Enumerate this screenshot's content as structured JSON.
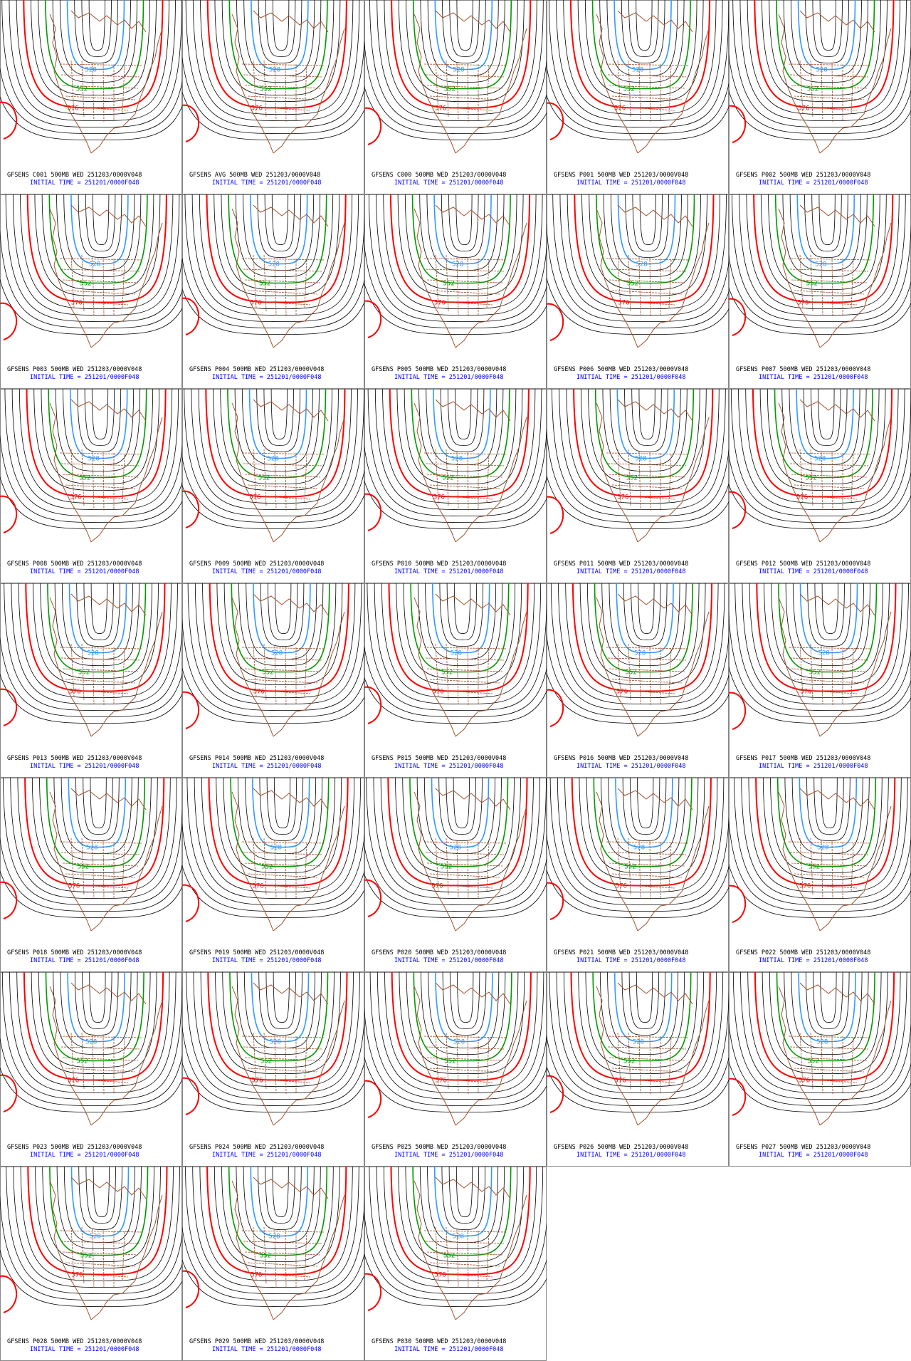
{
  "panels": [
    {
      "title": "GFSENS C001 500MB WED 251203/0000V048",
      "init": "INITIAL TIME = 251201/0000F048"
    },
    {
      "title": "GFSENS AVG 500MB WED 251203/0000V048",
      "init": "INITIAL TIME = 251201/0000F048"
    },
    {
      "title": "GFSENS C000 500MB WED 251203/0000V048",
      "init": "INITIAL TIME = 251201/0000F048"
    },
    {
      "title": "GFSENS P001 500MB WED 251203/0000V048",
      "init": "INITIAL TIME = 251201/0000F048"
    },
    {
      "title": "GFSENS P002 500MB WED 251203/0000V048",
      "init": "INITIAL TIME = 251201/0000F048"
    },
    {
      "title": "GFSENS P003 500MB WED 251203/0000V048",
      "init": "INITIAL TIME = 251201/0000F048"
    },
    {
      "title": "GFSENS P004 500MB WED 251203/0000V048",
      "init": "INITIAL TIME = 251201/0000F048"
    },
    {
      "title": "GFSENS P005 500MB WED 251203/0000V048",
      "init": "INITIAL TIME = 251201/0000F048"
    },
    {
      "title": "GFSENS P006 500MB WED 251203/0000V048",
      "init": "INITIAL TIME = 251201/0000F048"
    },
    {
      "title": "GFSENS P007 500MB WED 251203/0000V048",
      "init": "INITIAL TIME = 251201/0000F048"
    },
    {
      "title": "GFSENS P008 500MB WED 251203/0000V048",
      "init": "INITIAL TIME = 251201/0000F048"
    },
    {
      "title": "GFSENS P009 500MB WED 251203/0000V048",
      "init": "INITIAL TIME = 251201/0000F048"
    },
    {
      "title": "GFSENS P010 500MB WED 251203/0000V048",
      "init": "INITIAL TIME = 251201/0000F048"
    },
    {
      "title": "GFSENS P011 500MB WED 251203/0000V048",
      "init": "INITIAL TIME = 251201/0000F048"
    },
    {
      "title": "GFSENS P012 500MB WED 251203/0000V048",
      "init": "INITIAL TIME = 251201/0000F048"
    },
    {
      "title": "GFSENS P013 500MB WED 251203/0000V048",
      "init": "INITIAL TIME = 251201/0000F048"
    },
    {
      "title": "GFSENS P014 500MB WED 251203/0000V048",
      "init": "INITIAL TIME = 251201/0000F048"
    },
    {
      "title": "GFSENS P015 500MB WED 251203/0000V048",
      "init": "INITIAL TIME = 251201/0000F048"
    },
    {
      "title": "GFSENS P016 500MB WED 251203/0000V048",
      "init": "INITIAL TIME = 251201/0000F048"
    },
    {
      "title": "GFSENS P017 500MB WED 251203/0000V048",
      "init": "INITIAL TIME = 251201/0000F048"
    },
    {
      "title": "GFSENS P018 500MB WED 251203/0000V048",
      "init": "INITIAL TIME = 251201/0000F048"
    },
    {
      "title": "GFSENS P019 500MB WED 251203/0000V048",
      "init": "INITIAL TIME = 251201/0000F048"
    },
    {
      "title": "GFSENS P020 500MB WED 251203/0000V048",
      "init": "INITIAL TIME = 251201/0000F048"
    },
    {
      "title": "GFSENS P021 500MB WED 251203/0000V048",
      "init": "INITIAL TIME = 251201/0000F048"
    },
    {
      "title": "GFSENS P022 500MB WED 251203/0000V048",
      "init": "INITIAL TIME = 251201/0000F048"
    },
    {
      "title": "GFSENS P023 500MB WED 251203/0000V048",
      "init": "INITIAL TIME = 251201/0000F048"
    },
    {
      "title": "GFSENS P024 500MB WED 251203/0000V048",
      "init": "INITIAL TIME = 251201/0000F048"
    },
    {
      "title": "GFSENS P025 500MB WED 251203/0000V048",
      "init": "INITIAL TIME = 251201/0000F048"
    },
    {
      "title": "GFSENS P026 500MB WED 251203/0000V048",
      "init": "INITIAL TIME = 251201/0000F048"
    },
    {
      "title": "GFSENS P027 500MB WED 251203/0000V048",
      "init": "INITIAL TIME = 251201/0000F048"
    },
    {
      "title": "GFSENS P028 500MB WED 251203/0000V048",
      "init": "INITIAL TIME = 251201/0000F048"
    },
    {
      "title": "GFSENS P029 500MB WED 251203/0000V048",
      "init": "INITIAL TIME = 251201/0000F048"
    },
    {
      "title": "GFSENS P030 500MB WED 251203/0000V048",
      "init": "INITIAL TIME = 251201/0000F048"
    }
  ],
  "contour_labels": [
    "528",
    "552",
    "576"
  ]
}
